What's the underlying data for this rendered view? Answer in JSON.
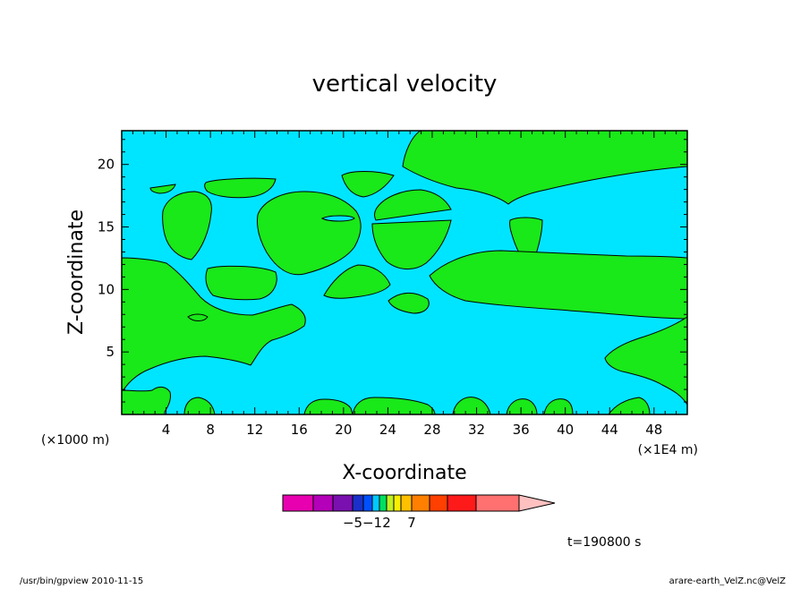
{
  "chart_data": {
    "type": "contour",
    "title": "vertical velocity",
    "xlabel": "X-coordinate",
    "ylabel": "Z-coordinate",
    "x_ticks": [
      "4",
      "8",
      "12",
      "16",
      "20",
      "24",
      "28",
      "32",
      "36",
      "40",
      "44",
      "48"
    ],
    "x_tick_values": [
      4,
      8,
      12,
      16,
      20,
      24,
      28,
      32,
      36,
      40,
      44,
      48
    ],
    "y_ticks": [
      "5",
      "10",
      "15",
      "20"
    ],
    "y_tick_values": [
      5,
      10,
      15,
      20
    ],
    "xlim": [
      0,
      51
    ],
    "ylim": [
      0,
      22.7
    ],
    "x_unit": "(×1E4 m)",
    "y_unit": "(×1000 m)",
    "background_level_color": "#00e5ff",
    "contour_fill_color": "#19e819",
    "time_label": "t=190800 s",
    "colorbar": {
      "colors": [
        "#e800b0",
        "#b400b8",
        "#7a10b0",
        "#1a30c8",
        "#0050ff",
        "#00c8ff",
        "#00e060",
        "#c0f020",
        "#f8f000",
        "#ffc000",
        "#ff8000",
        "#ff4000",
        "#ff1a1a",
        "#ff7070",
        "#ffc0c0"
      ],
      "labels": [
        {
          "text": "−5",
          "after_box": 3
        },
        {
          "text": "−1",
          "after_box": 5
        },
        {
          "text": "2",
          "after_box": 7
        },
        {
          "text": "7",
          "after_box": 10
        }
      ]
    }
  },
  "footer": {
    "left": "/usr/bin/gpview  2010-11-15",
    "right": "arare-earth_VelZ.nc@VelZ"
  }
}
